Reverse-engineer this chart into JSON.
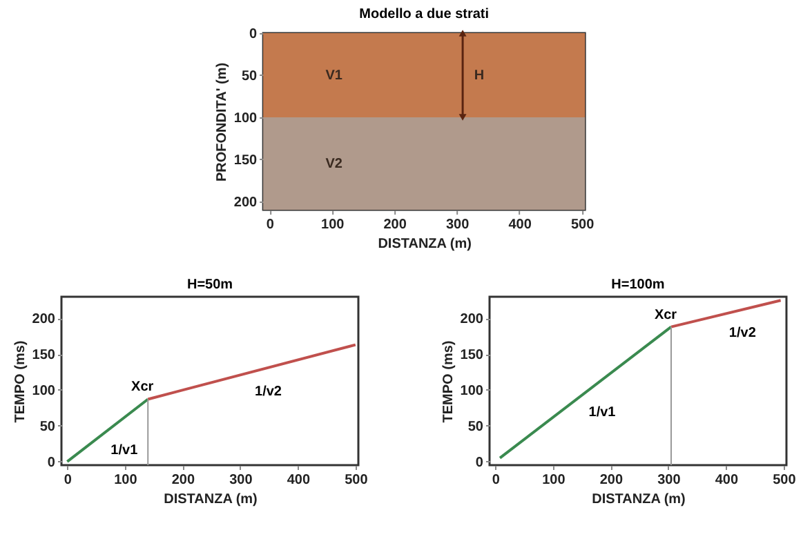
{
  "chart_data": [
    {
      "type": "area",
      "stacked": true,
      "title": "Modello a due strati",
      "xlabel": "DISTANZA (m)",
      "ylabel": "PROFONDITA' (m)",
      "xlim": [
        -10,
        505
      ],
      "ylim": [
        210,
        0
      ],
      "xticks": [
        0,
        100,
        200,
        300,
        400,
        500
      ],
      "yticks": [
        0,
        50,
        100,
        150,
        200
      ],
      "grid": false,
      "series": [
        {
          "name": "V1",
          "color": "#c47a4e",
          "x": [
            -10,
            505
          ],
          "values": [
            100,
            100
          ]
        },
        {
          "name": "V2",
          "color": "#b09a8c",
          "x": [
            -10,
            505
          ],
          "values": [
            110,
            110
          ]
        }
      ],
      "annotations": [
        "H"
      ]
    },
    {
      "type": "line",
      "title": "H=50m",
      "xlabel": "DISTANZA (m)",
      "ylabel": "TEMPO (ms)",
      "xlim": [
        -10,
        505
      ],
      "ylim": [
        -5,
        230
      ],
      "xticks": [
        0,
        100,
        200,
        300,
        400,
        500
      ],
      "yticks": [
        0,
        50,
        100,
        150,
        200
      ],
      "grid": false,
      "series": [
        {
          "name": "1/v1",
          "color": "#3a8a4f",
          "x": [
            0,
            140
          ],
          "values": [
            0,
            87
          ]
        },
        {
          "name": "1/v2",
          "color": "#c0504d",
          "x": [
            140,
            500
          ],
          "values": [
            87,
            163
          ]
        }
      ],
      "ref_lines": [
        {
          "axis": "x",
          "value": 140,
          "label": "Xcr",
          "color": "#999999"
        }
      ]
    },
    {
      "type": "line",
      "title": "H=100m",
      "xlabel": "DISTANZA (m)",
      "ylabel": "TEMPO (ms)",
      "xlim": [
        -10,
        505
      ],
      "ylim": [
        -5,
        230
      ],
      "xticks": [
        0,
        100,
        200,
        300,
        400,
        500
      ],
      "yticks": [
        0,
        50,
        100,
        150,
        200
      ],
      "grid": false,
      "series": [
        {
          "name": "1/v1",
          "color": "#3a8a4f",
          "x": [
            8,
            305
          ],
          "values": [
            5,
            188
          ]
        },
        {
          "name": "1/v2",
          "color": "#c0504d",
          "x": [
            305,
            495
          ],
          "values": [
            188,
            225
          ]
        }
      ],
      "ref_lines": [
        {
          "axis": "x",
          "value": 305,
          "label": "Xcr",
          "color": "#999999"
        }
      ]
    }
  ]
}
